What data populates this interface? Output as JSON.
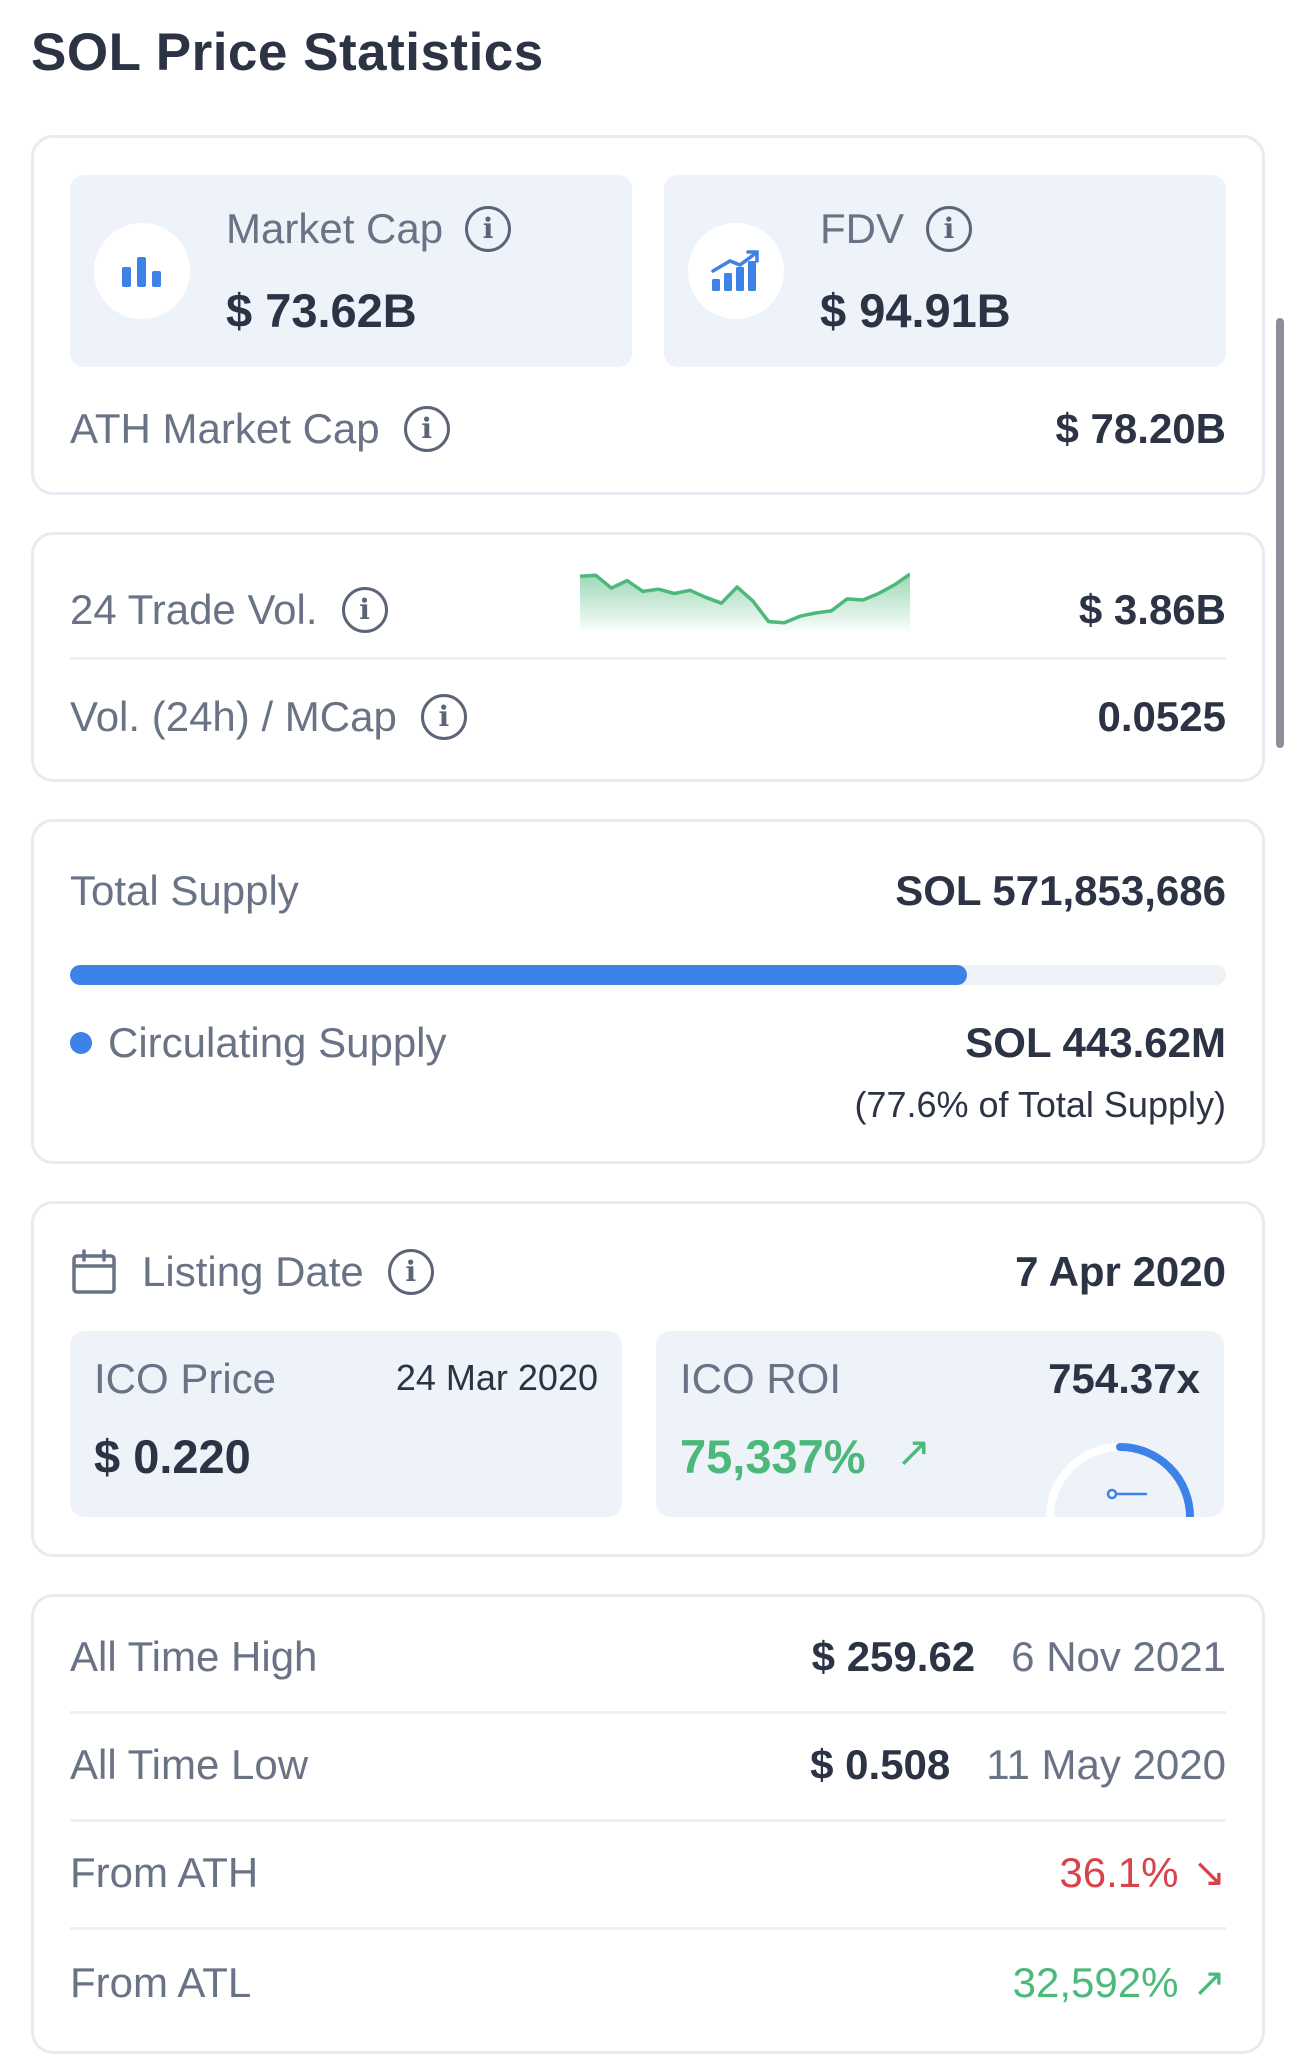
{
  "title": "SOL Price Statistics",
  "market": {
    "market_cap_label": "Market Cap",
    "market_cap_value": "$ 73.62B",
    "fdv_label": "FDV",
    "fdv_value": "$ 94.91B",
    "ath_market_cap_label": "ATH Market Cap",
    "ath_market_cap_value": "$ 78.20B"
  },
  "volume": {
    "trade_vol_label": "24 Trade Vol.",
    "trade_vol_value": "$ 3.86B",
    "sparkline": [
      0.94,
      0.96,
      0.72,
      0.86,
      0.66,
      0.7,
      0.62,
      0.68,
      0.55,
      0.44,
      0.74,
      0.48,
      0.1,
      0.08,
      0.2,
      0.26,
      0.3,
      0.52,
      0.5,
      0.62,
      0.78,
      0.98
    ],
    "sparkline_color": "#4cb97a",
    "vol_mcap_label": "Vol. (24h) / MCap",
    "vol_mcap_value": "0.0525"
  },
  "supply": {
    "total_label": "Total Supply",
    "total_value": "SOL 571,853,686",
    "circulating_fraction": 0.776,
    "circulating_label": "Circulating Supply",
    "circulating_value": "SOL 443.62M",
    "circulating_pct_text": "(77.6% of Total Supply)",
    "accent_color": "#3d82e6"
  },
  "listing": {
    "label": "Listing Date",
    "date": "7 Apr 2020",
    "ico_price_label": "ICO Price",
    "ico_price_date": "24 Mar 2020",
    "ico_price_value": "$ 0.220",
    "ico_roi_label": "ICO ROI",
    "ico_roi_multiple": "754.37x",
    "ico_roi_pct": "75,337%",
    "ico_roi_arrow": "↗"
  },
  "records": {
    "ath_label": "All Time High",
    "ath_value": "$ 259.62",
    "ath_date": "6 Nov 2021",
    "atl_label": "All Time Low",
    "atl_value": "$ 0.508",
    "atl_date": "11 May 2020",
    "from_ath_label": "From ATH",
    "from_ath_value": "36.1%",
    "from_ath_arrow": "↘",
    "from_atl_label": "From ATL",
    "from_atl_value": "32,592%",
    "from_atl_arrow": "↗",
    "positive_color": "#4cb97a",
    "negative_color": "#d8434b"
  }
}
